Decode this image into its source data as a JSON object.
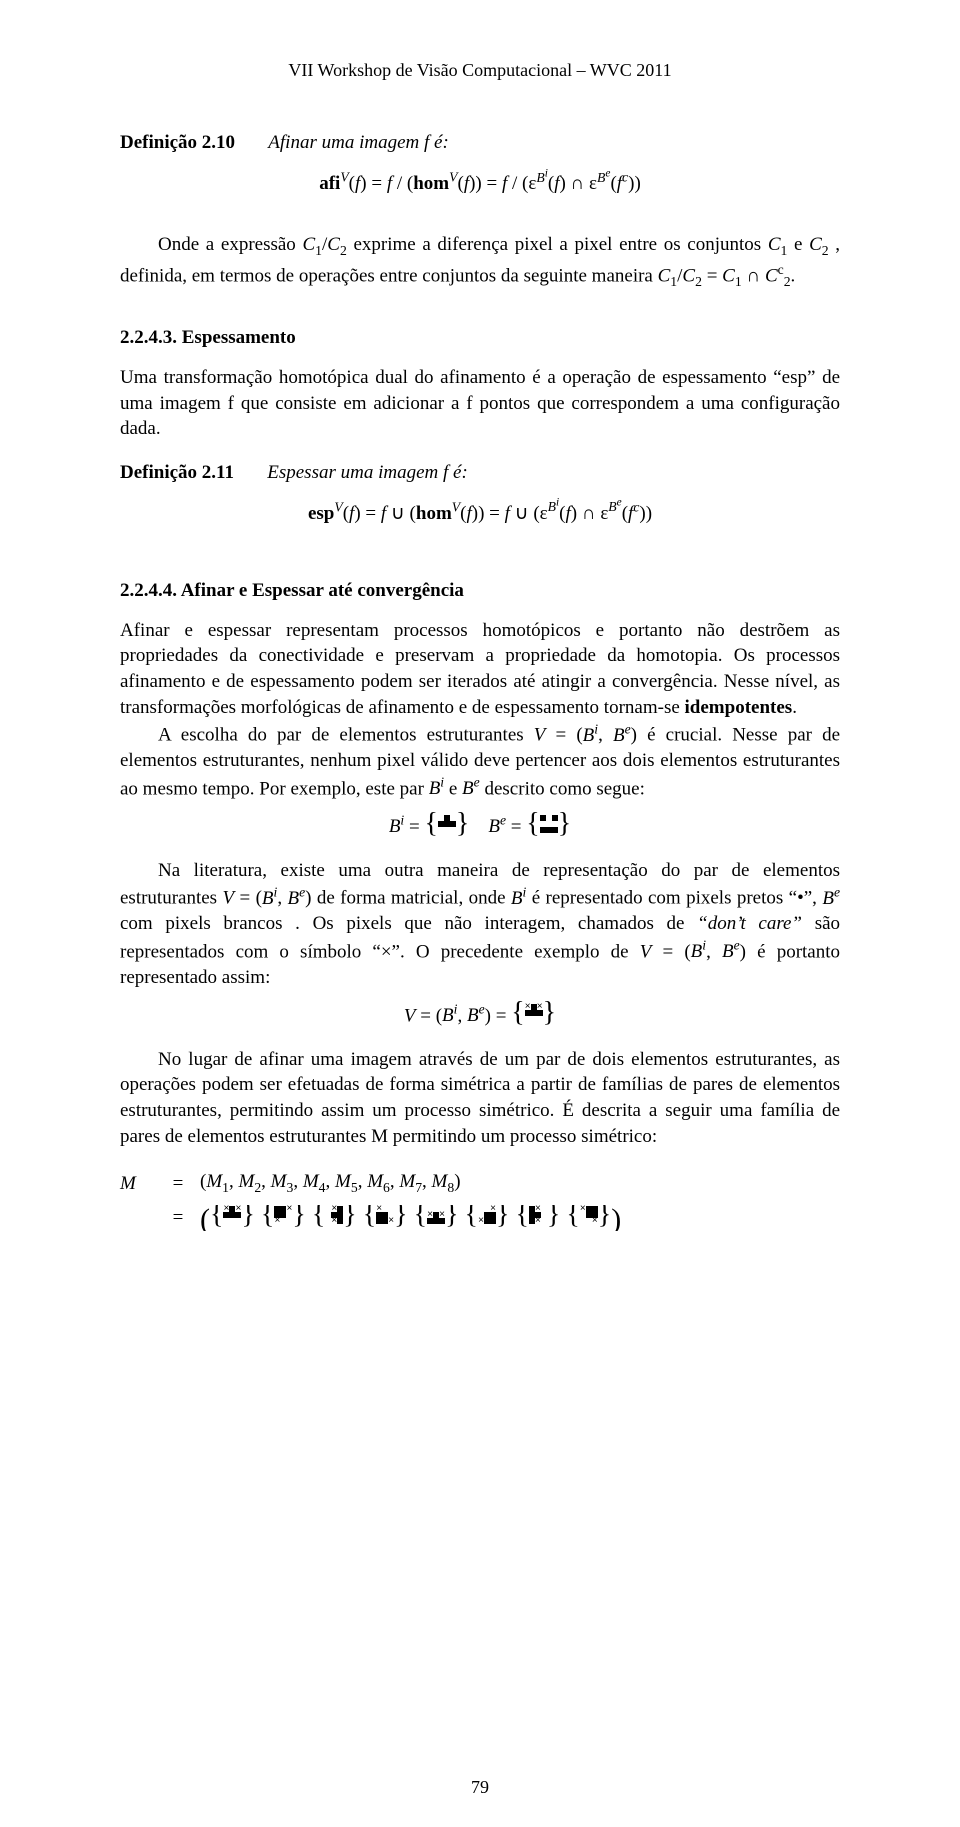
{
  "colors": {
    "background": "#ffffff",
    "text": "#000000",
    "dot_dark": "#000000"
  },
  "typography": {
    "body_font": "Times New Roman",
    "body_size_pt": 11,
    "header_size_pt": 11,
    "line_height": 1.35
  },
  "header": "VII Workshop de Visão Computacional – WVC 2011",
  "def210": {
    "label": "Definição 2.10",
    "text": "Afinar uma imagem f é:"
  },
  "eq_afi": "afiᵥ(f) = f / (homᵥ(f)) = f / (ε^{Bᶦ}(f) ∩ ε^{Bᵉ}(f^c))",
  "p1a": "Onde a expressão ",
  "p1b": " exprime a diferença pixel a pixel entre os conjuntos ",
  "p1c": ", definida, em termos de operações entre conjuntos da seguinte maneira ",
  "sec2243_title": "2.2.4.3. Espessamento",
  "p2": "Uma transformação homotópica dual do afinamento é a operação de espessamento “esp” de uma imagem f que consiste em adicionar a f pontos que correspondem a uma configuração dada.",
  "def211": {
    "label": "Definição 2.11",
    "text": "Espessar uma imagem f é:"
  },
  "eq_esp": "espᵥ(f) = f ∪ (homᵥ(f)) = f ∪ (ε^{Bᶦ}(f) ∩ ε^{Bᵉ}(f^c))",
  "sec2244_title": "2.2.4.4. Afinar e Espessar até convergência",
  "p3": "Afinar e espessar representam processos homotópicos e portanto não destrõem as propriedades da conectividade e preservam a propriedade da homotopia. Os processos afinamento e de espessamento podem ser iterados até atingir a convergência. Nesse nível, as transformações morfológicas de afinamento e de espessamento tornam-se ",
  "p3_bold": "idempotentes",
  "p4a": "A escolha do par de elementos estruturantes ",
  "p4b": " é crucial. Nesse par de elementos estruturantes, nenhum pixel válido deve pertencer aos dois elementos estruturantes ao mesmo tempo. Por exemplo, este par ",
  "p4c": " descrito como segue:",
  "p5a": "Na literatura, existe uma outra maneira de representação do par de elementos estruturantes ",
  "p5b": " de forma matricial, onde ",
  "p5c": " é representado com pixels pretos “•”, ",
  "p5d": " com pixels brancos . Os pixels que não interagem, chamados de ",
  "p5_dontcare": "“don’t care”",
  "p5e": " são representados com o símbolo “×”. O precedente exemplo de ",
  "p5f": " é portanto representado assim:",
  "p6": "No lugar de afinar uma imagem através de um par de dois elementos estruturantes, as operações podem ser efetuadas de forma simétrica a partir de famílias de pares de elementos estruturantes, permitindo assim um processo simétrico. É descrita a seguir uma família de pares de elementos estruturantes M permitindo um processo simétrico:",
  "m_tuple": "(M₁, M₂, M₃, M₄, M₅, M₆, M₇, M₈)",
  "se": {
    "Bi": [
      [
        "l",
        "d",
        "l"
      ],
      [
        "d",
        "d",
        "d"
      ],
      [
        "l",
        "l",
        "l"
      ]
    ],
    "Be": [
      [
        "d",
        "l",
        "d"
      ],
      [
        "l",
        "l",
        "l"
      ],
      [
        "d",
        "d",
        "d"
      ]
    ],
    "V": [
      [
        "x",
        "d",
        "x"
      ],
      [
        "d",
        "d",
        "d"
      ],
      [
        "l",
        "l",
        "l"
      ]
    ],
    "M1": [
      [
        "x",
        "d",
        "x"
      ],
      [
        "d",
        "d",
        "d"
      ],
      [
        "l",
        "l",
        "l"
      ]
    ],
    "M2": [
      [
        "d",
        "d",
        "x"
      ],
      [
        "d",
        "d",
        "l"
      ],
      [
        "x",
        "l",
        "l"
      ]
    ],
    "M3": [
      [
        "l",
        "x",
        "d"
      ],
      [
        "l",
        "d",
        "d"
      ],
      [
        "l",
        "x",
        "d"
      ]
    ],
    "M4": [
      [
        "x",
        "l",
        "l"
      ],
      [
        "d",
        "d",
        "l"
      ],
      [
        "d",
        "d",
        "x"
      ]
    ],
    "M5": [
      [
        "l",
        "l",
        "l"
      ],
      [
        "x",
        "d",
        "x"
      ],
      [
        "d",
        "d",
        "d"
      ]
    ],
    "M6": [
      [
        "l",
        "l",
        "x"
      ],
      [
        "l",
        "d",
        "d"
      ],
      [
        "x",
        "d",
        "d"
      ]
    ],
    "M7": [
      [
        "d",
        "x",
        "l"
      ],
      [
        "d",
        "d",
        "l"
      ],
      [
        "d",
        "x",
        "l"
      ]
    ],
    "M8": [
      [
        "x",
        "d",
        "d"
      ],
      [
        "l",
        "d",
        "d"
      ],
      [
        "l",
        "l",
        "x"
      ]
    ]
  },
  "page_number": "79"
}
